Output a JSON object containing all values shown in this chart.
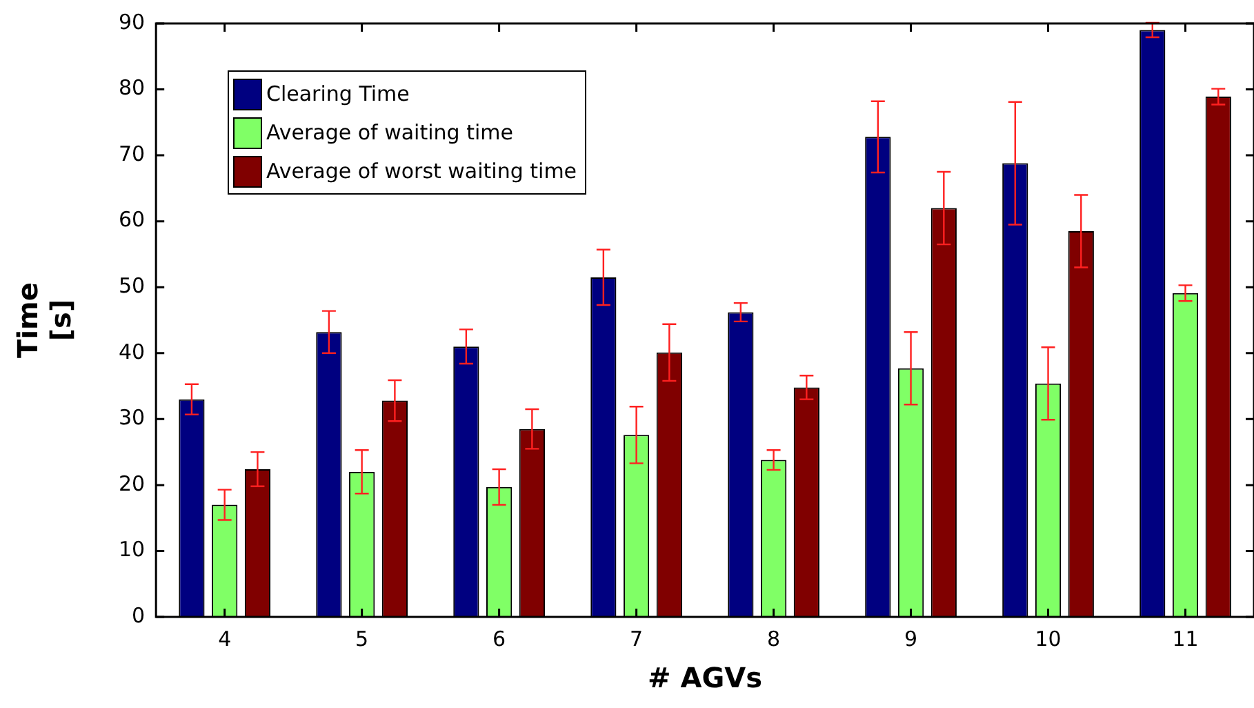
{
  "chart_data": {
    "type": "bar",
    "xlabel": "# AGVs",
    "ylabel": "Time\n[s]",
    "categories": [
      "4",
      "5",
      "6",
      "7",
      "8",
      "9",
      "10",
      "11"
    ],
    "series": [
      {
        "name": "Clearing Time",
        "color": "#000080",
        "values": [
          33,
          43.2,
          41,
          51.5,
          46.2,
          72.8,
          68.8,
          89
        ],
        "errors": [
          2.3,
          3.2,
          2.6,
          4.2,
          1.4,
          5.4,
          9.3,
          1.1
        ]
      },
      {
        "name": "Average of waiting time",
        "color": "#80ff66",
        "values": [
          17,
          22,
          19.7,
          27.6,
          23.8,
          37.7,
          35.4,
          49.1
        ],
        "errors": [
          2.3,
          3.3,
          2.7,
          4.3,
          1.5,
          5.5,
          5.5,
          1.2
        ]
      },
      {
        "name": "Average of worst waiting time",
        "color": "#800000",
        "values": [
          22.4,
          32.8,
          28.5,
          40.1,
          34.8,
          62,
          58.5,
          78.9
        ],
        "errors": [
          2.6,
          3.1,
          3,
          4.3,
          1.8,
          5.5,
          5.5,
          1.2
        ]
      }
    ],
    "ylim": [
      0,
      90
    ],
    "yticks": [
      0,
      10,
      20,
      30,
      40,
      50,
      60,
      70,
      80,
      90
    ],
    "grid": false,
    "legend": "top left"
  }
}
